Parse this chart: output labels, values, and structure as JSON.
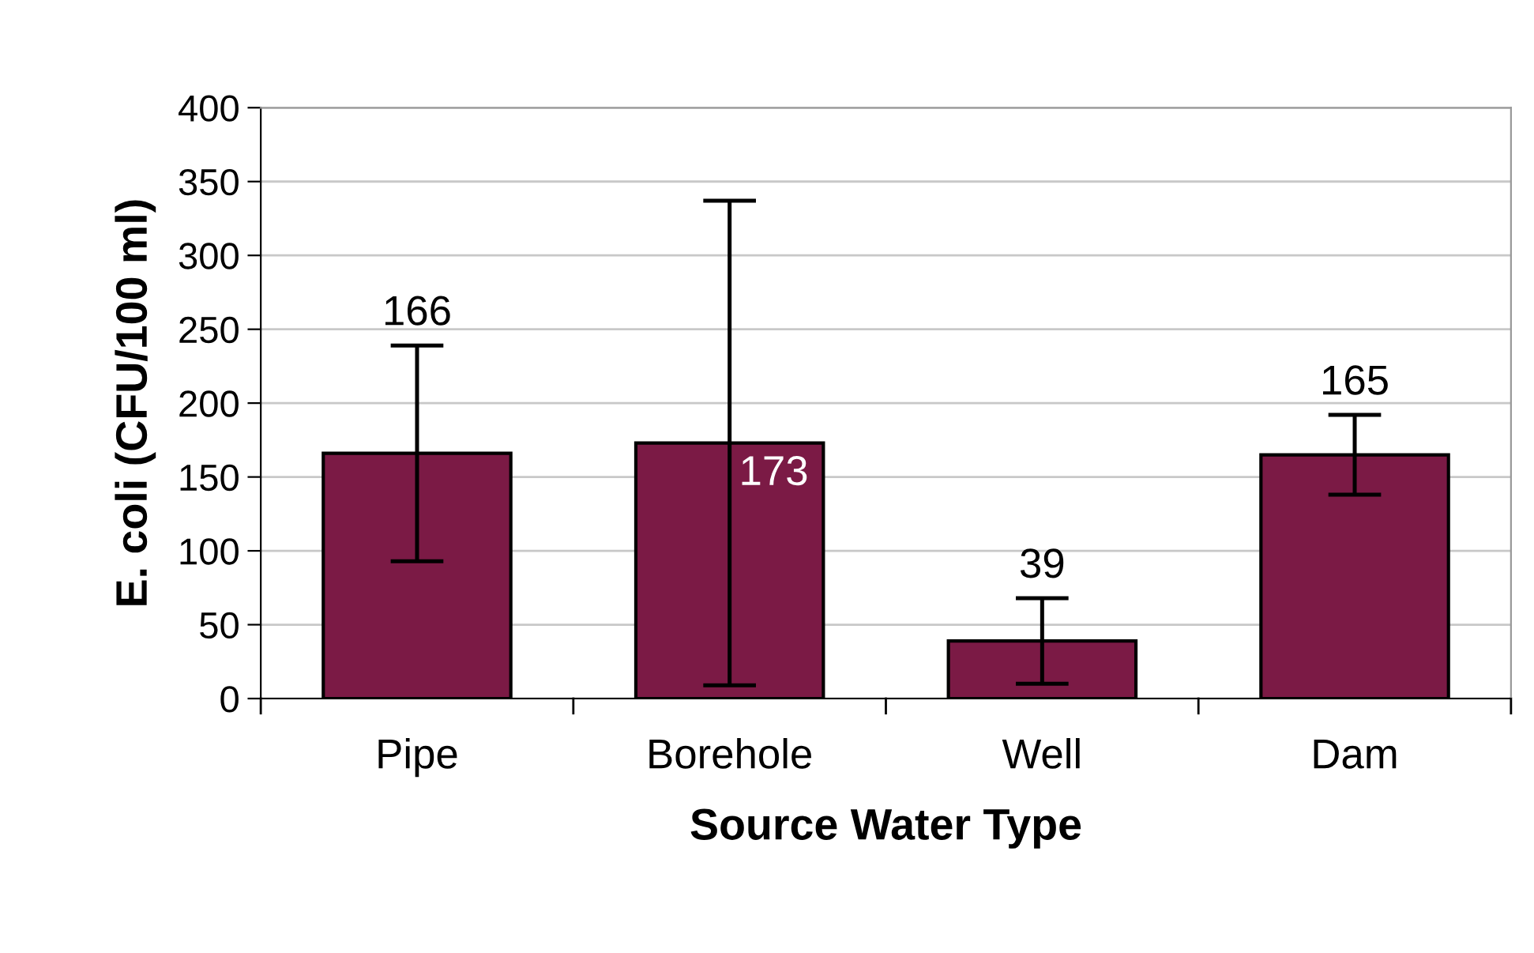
{
  "chart_data": {
    "type": "bar",
    "xlabel": "Source Water Type",
    "ylabel": "E. coli (CFU/100 ml)",
    "categories": [
      "Pipe",
      "Borehole",
      "Well",
      "Dam"
    ],
    "values": [
      166,
      173,
      39,
      165
    ],
    "errors": [
      73,
      164,
      29,
      27
    ],
    "color": "#7b1a45",
    "data_labels": true,
    "ylim": [
      0,
      400
    ],
    "yticks": [
      0,
      50,
      100,
      150,
      200,
      250,
      300,
      350,
      400
    ],
    "grid": "y",
    "legend": false
  }
}
